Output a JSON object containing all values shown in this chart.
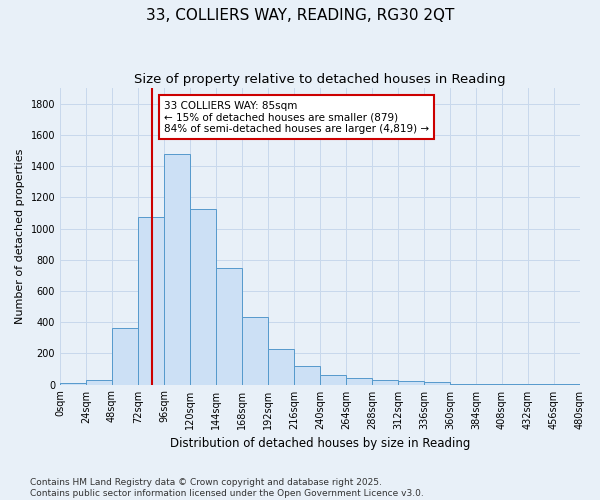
{
  "title": "33, COLLIERS WAY, READING, RG30 2QT",
  "subtitle": "Size of property relative to detached houses in Reading",
  "xlabel": "Distribution of detached houses by size in Reading",
  "ylabel": "Number of detached properties",
  "bin_edges": [
    0,
    24,
    48,
    72,
    96,
    120,
    144,
    168,
    192,
    216,
    240,
    264,
    288,
    312,
    336,
    360,
    384,
    408,
    432,
    456,
    480
  ],
  "bar_heights": [
    10,
    30,
    360,
    1075,
    1475,
    1125,
    750,
    435,
    225,
    120,
    60,
    45,
    30,
    20,
    18,
    5,
    3,
    2,
    1,
    1
  ],
  "bar_facecolor": "#cce0f5",
  "bar_edgecolor": "#5599cc",
  "property_size": 85,
  "vline_color": "#cc0000",
  "annotation_text": "33 COLLIERS WAY: 85sqm\n← 15% of detached houses are smaller (879)\n84% of semi-detached houses are larger (4,819) →",
  "annotation_box_edgecolor": "#cc0000",
  "annotation_box_facecolor": "#ffffff",
  "grid_color": "#c8d8ec",
  "background_color": "#e8f0f8",
  "ylim": [
    0,
    1900
  ],
  "yticks": [
    0,
    200,
    400,
    600,
    800,
    1000,
    1200,
    1400,
    1600,
    1800
  ],
  "footer_text": "Contains HM Land Registry data © Crown copyright and database right 2025.\nContains public sector information licensed under the Open Government Licence v3.0.",
  "title_fontsize": 11,
  "subtitle_fontsize": 9.5,
  "xlabel_fontsize": 8.5,
  "ylabel_fontsize": 8,
  "tick_fontsize": 7,
  "annotation_fontsize": 7.5,
  "footer_fontsize": 6.5
}
